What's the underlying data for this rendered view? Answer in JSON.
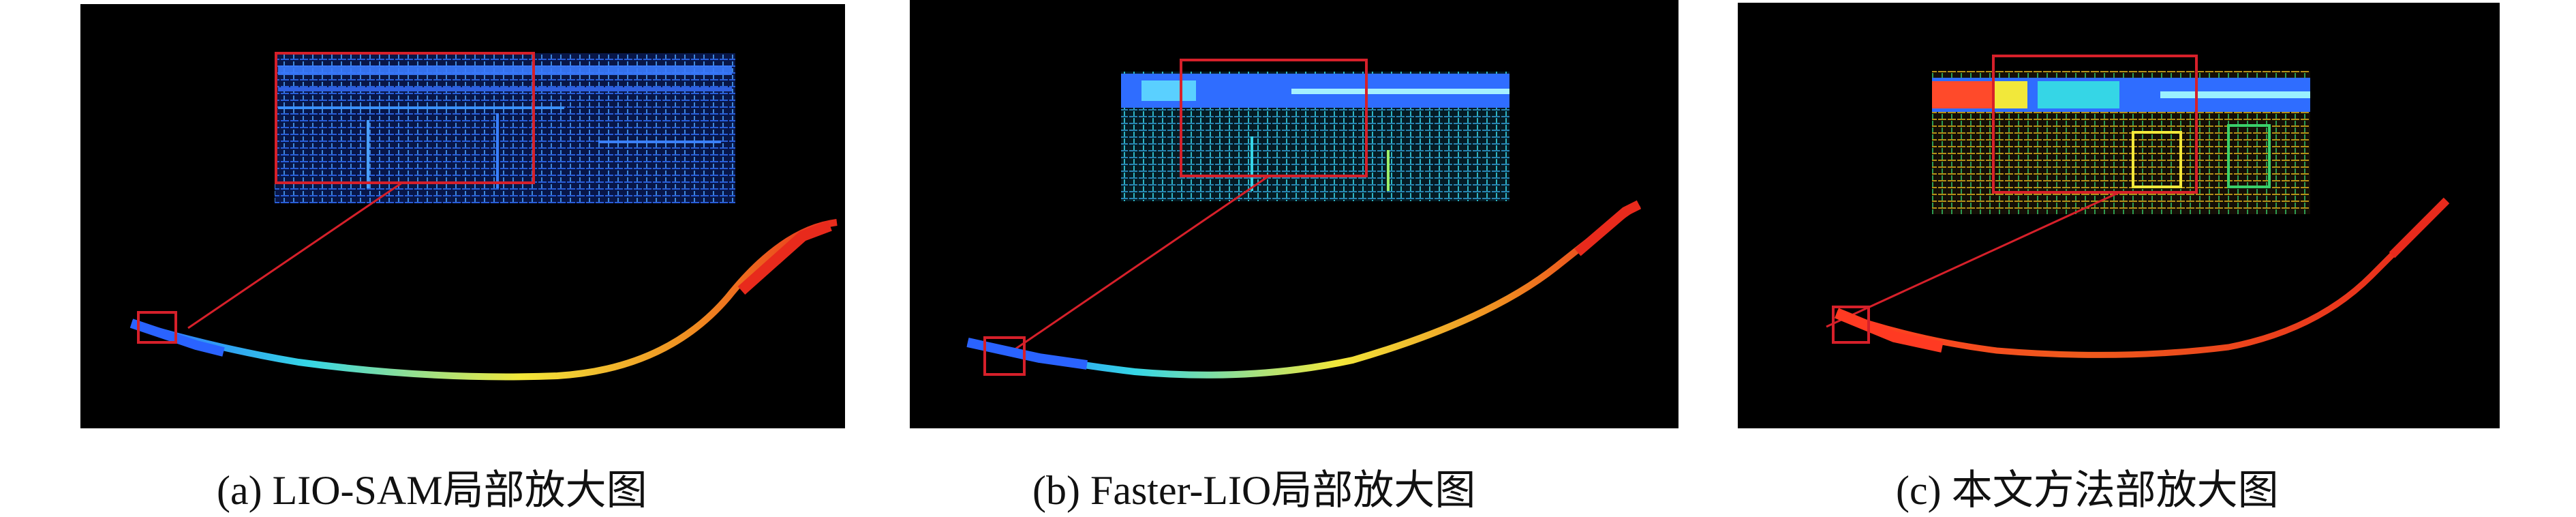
{
  "figure": {
    "panels": [
      {
        "caption": "(a) LIO-SAM局部放大图"
      },
      {
        "caption": "(b) Faster-LIO局部放大图"
      },
      {
        "caption": "(c) 本文方法部放大图"
      }
    ],
    "colors": {
      "background": "#000000",
      "zoom_box": "#d6202a",
      "cloud_blue": "#1e5cff",
      "cloud_cyan": "#35d6e6",
      "cloud_yellow": "#f2e83a",
      "cloud_red": "#e82a1c"
    }
  }
}
